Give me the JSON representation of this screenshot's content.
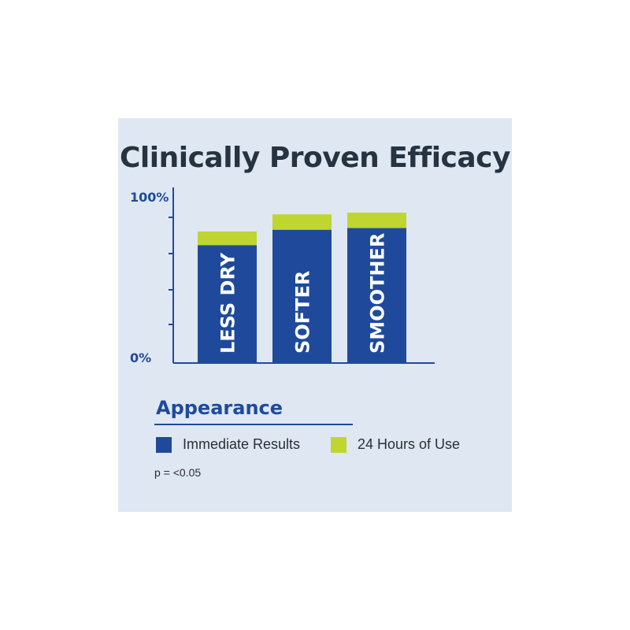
{
  "chart_data": {
    "type": "bar",
    "stacked": true,
    "title": "Clinically Proven Efficacy",
    "categories": [
      "LESS DRY",
      "SOFTER",
      "SMOOTHER"
    ],
    "series": [
      {
        "name": "Immediate Results",
        "values": [
          69,
          78,
          79
        ],
        "color": "#1f4a9c"
      },
      {
        "name": "24 Hours of Use",
        "values": [
          8,
          9,
          9
        ],
        "color": "#bed62f"
      }
    ],
    "ylim": [
      0,
      100
    ],
    "y_tick_labels": [
      "100%",
      "0%"
    ],
    "legend_title": "Appearance",
    "footnote": "p = <0.05"
  },
  "colors": {
    "panel_background": "#dfe7f2",
    "axis": "#1f4a9c",
    "title_text": "#263340"
  }
}
